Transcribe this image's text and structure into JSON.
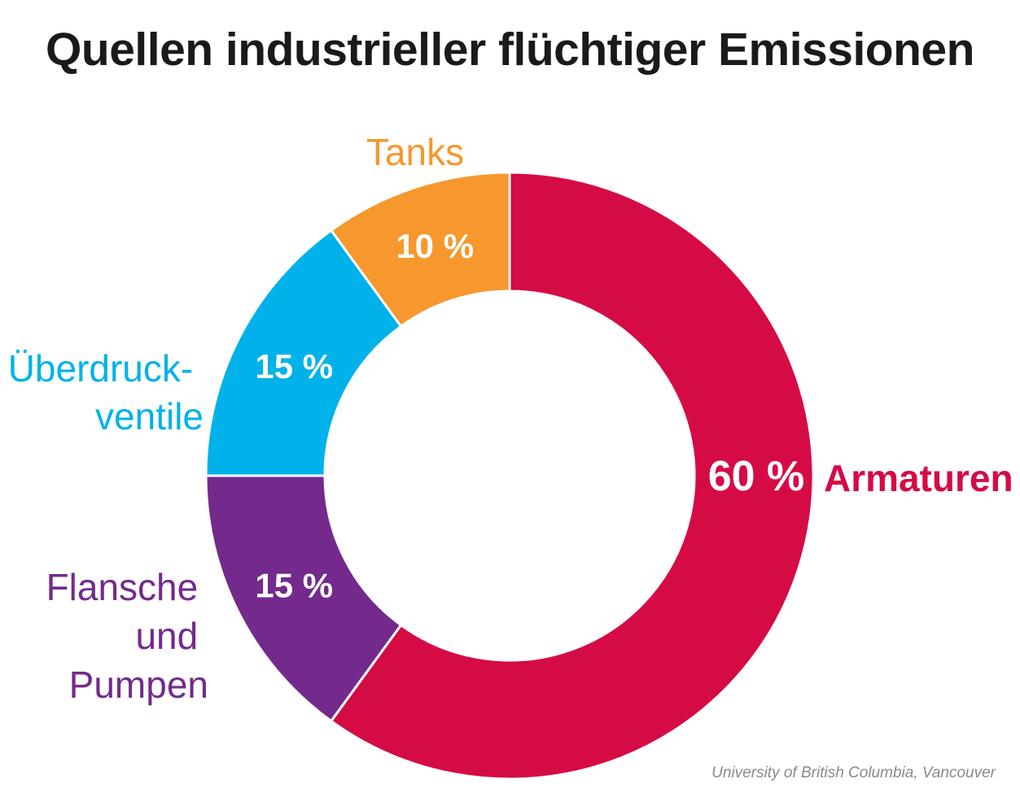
{
  "chart_data": {
    "type": "pie",
    "title": "Quellen industrieller flüchtiger Emissionen",
    "slices": [
      {
        "label": "Armaturen",
        "value": 60,
        "value_label": "60 %",
        "color": "#d50b45"
      },
      {
        "label": "Flansche und Pumpen",
        "value": 15,
        "value_label": "15 %",
        "color": "#732a8c"
      },
      {
        "label": "Überdruck-ventile",
        "value": 15,
        "value_label": "15 %",
        "color": "#00b2e9"
      },
      {
        "label": "Tanks",
        "value": 10,
        "value_label": "10 %",
        "color": "#f6982d"
      }
    ],
    "donut": true,
    "source": "University of British Columbia, Vancouver"
  }
}
